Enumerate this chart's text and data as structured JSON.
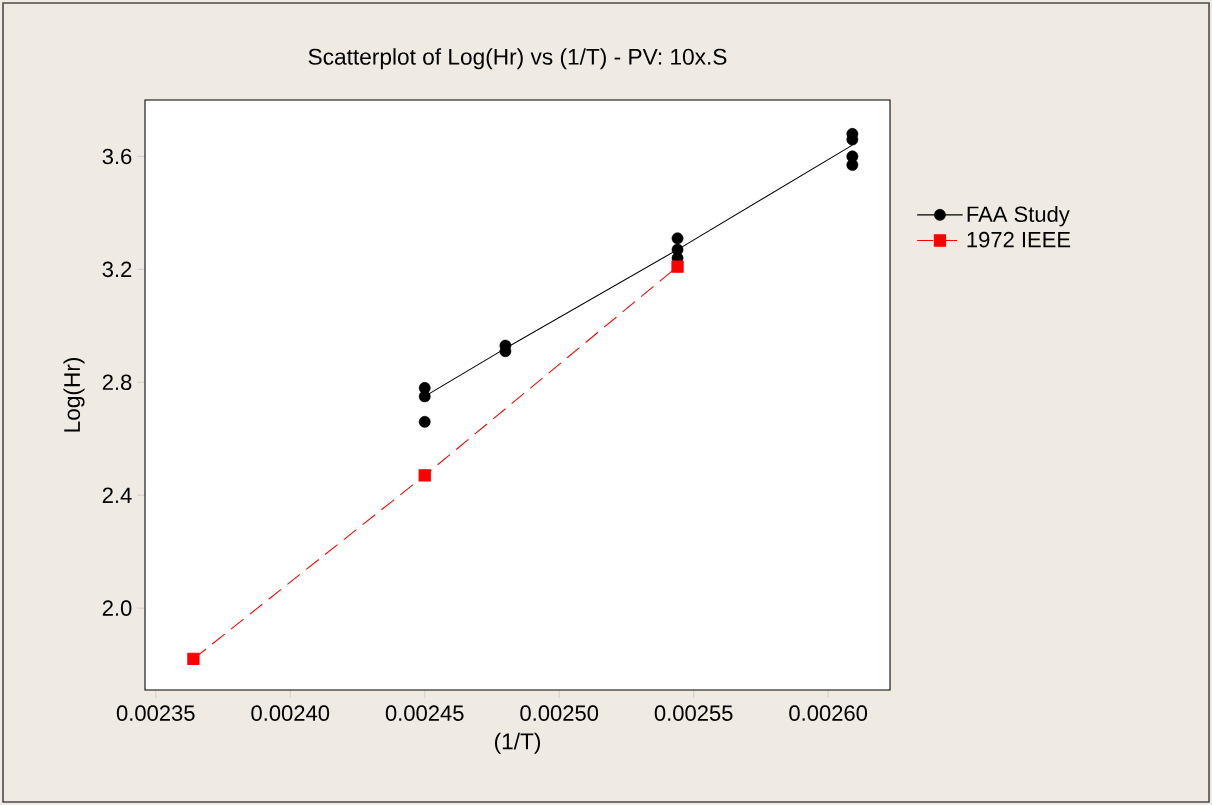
{
  "chart_data": {
    "type": "scatter",
    "title": "Scatterplot of Log(Hr)   vs (1/T)  -   PV:  10x.S",
    "xlabel": "(1/T)",
    "ylabel": "Log(Hr)",
    "xlim": [
      0.002346,
      0.002623
    ],
    "ylim": [
      1.71,
      3.8
    ],
    "xticks": [
      {
        "value": 0.00235,
        "label": "0.00235"
      },
      {
        "value": 0.0024,
        "label": "0.00240"
      },
      {
        "value": 0.00245,
        "label": "0.00245"
      },
      {
        "value": 0.0025,
        "label": "0.00250"
      },
      {
        "value": 0.00255,
        "label": "0.00255"
      },
      {
        "value": 0.0026,
        "label": "0.00260"
      }
    ],
    "yticks": [
      {
        "value": 2.0,
        "label": "2.0"
      },
      {
        "value": 2.4,
        "label": "2.4"
      },
      {
        "value": 2.8,
        "label": "2.8"
      },
      {
        "value": 3.2,
        "label": "3.2"
      },
      {
        "value": 3.6,
        "label": "3.6"
      }
    ],
    "legend": "right",
    "series": [
      {
        "name": "FAA Study",
        "color": "#000000",
        "marker": "circle",
        "x": [
          0.00245,
          0.00245,
          0.00245,
          0.00248,
          0.00248,
          0.002544,
          0.002544,
          0.002544,
          0.002609,
          0.002609,
          0.002609,
          0.002609
        ],
        "values": [
          2.78,
          2.75,
          2.66,
          2.93,
          2.91,
          3.31,
          3.27,
          3.24,
          3.68,
          3.66,
          3.6,
          3.57
        ]
      },
      {
        "type": "line",
        "color": "#000000",
        "marker": "none",
        "line_style": "solid",
        "x": [
          0.00245,
          0.00248,
          0.002544,
          0.002609
        ],
        "values": [
          2.75,
          2.92,
          3.27,
          3.64
        ]
      },
      {
        "name": "1972 IEEE",
        "type": "line",
        "color": "#ff0000",
        "marker": "square",
        "line_style": "dashed",
        "x": [
          0.002364,
          0.00245,
          0.002544
        ],
        "values": [
          1.82,
          2.47,
          3.21
        ]
      }
    ]
  }
}
